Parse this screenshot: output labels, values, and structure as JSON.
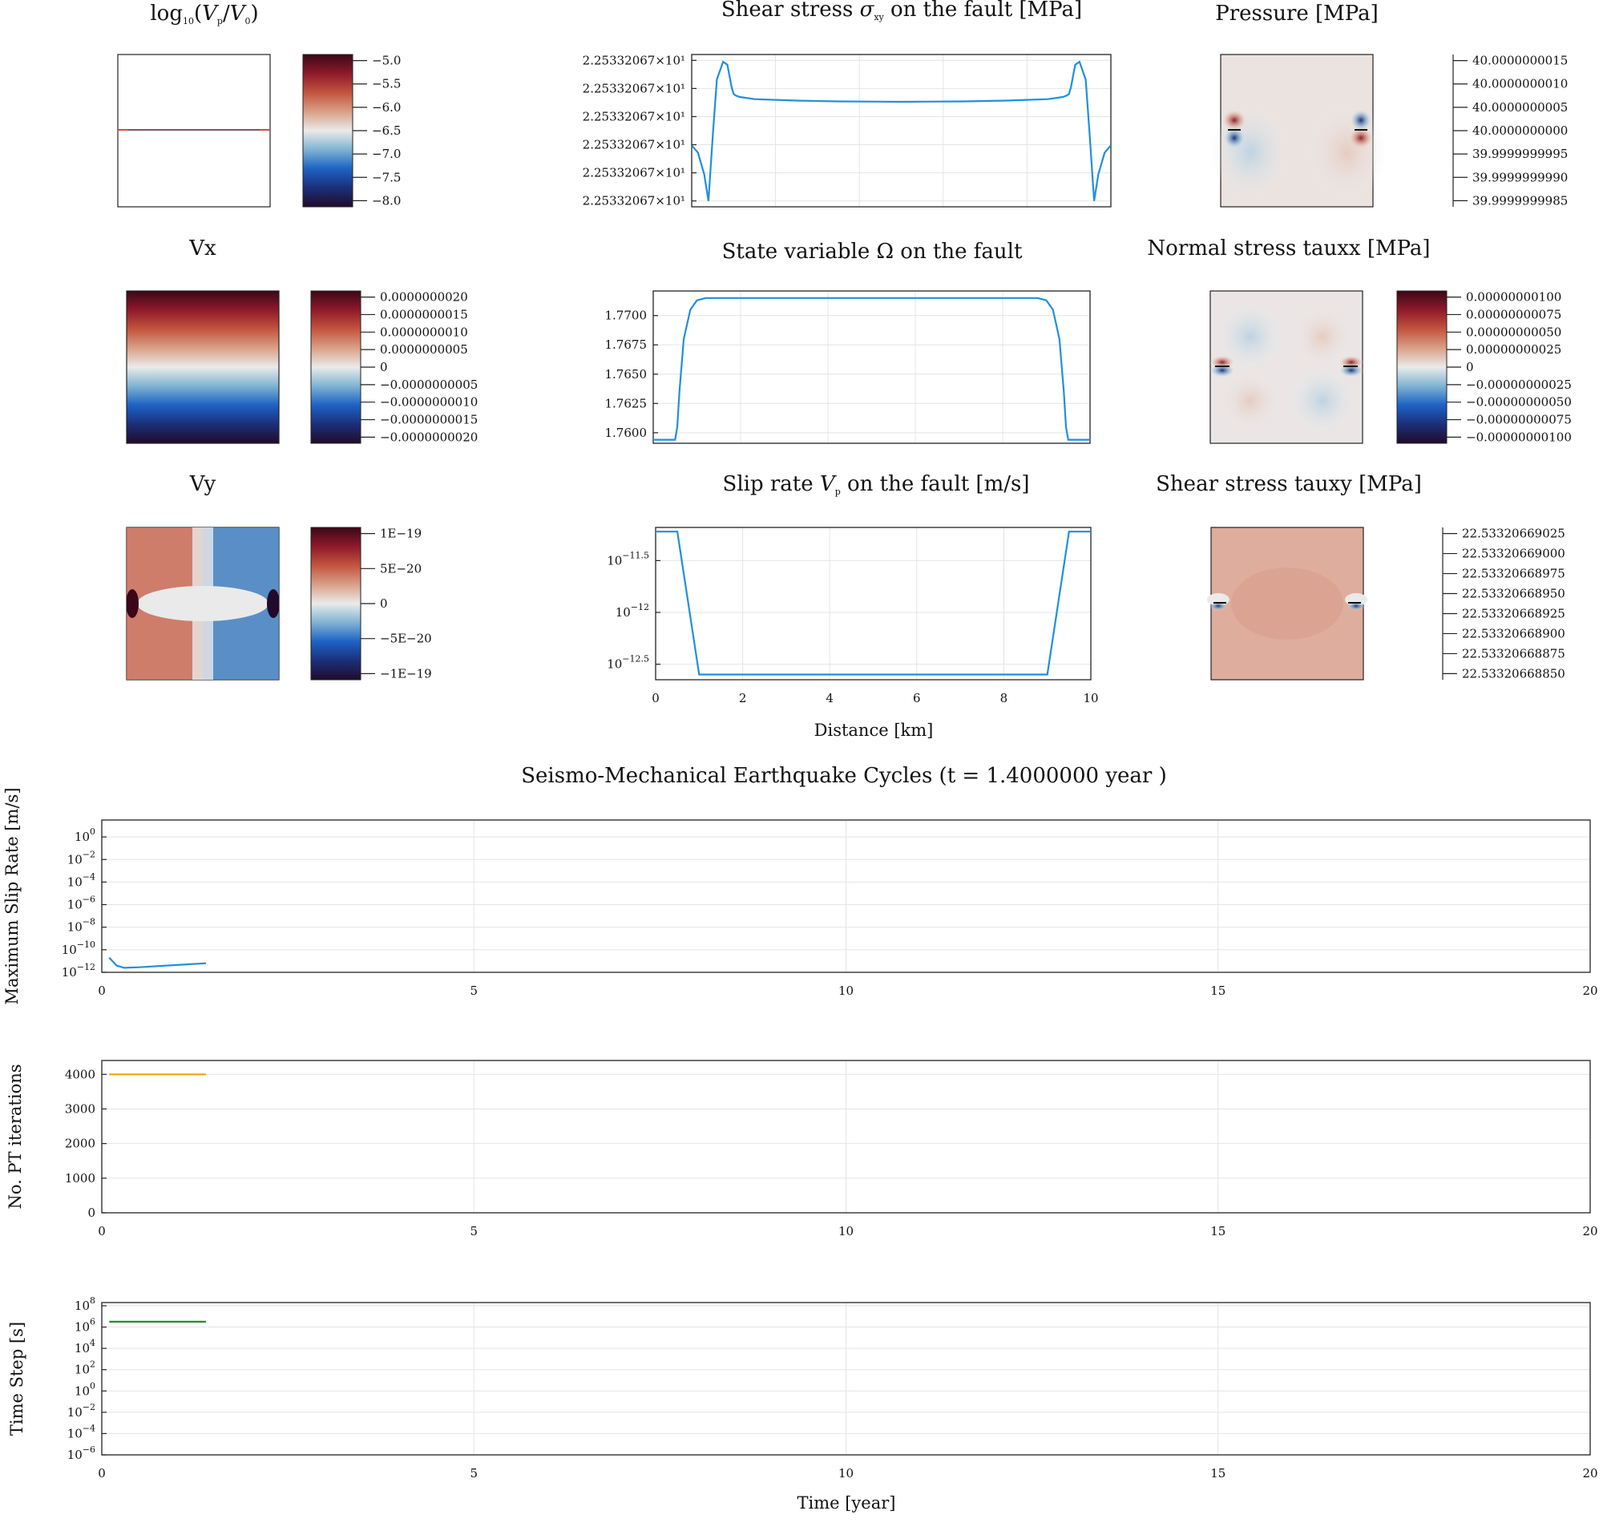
{
  "colors": {
    "series_blue": "#1f8fdf",
    "series_orange": "#f2a20e",
    "series_green": "#27892a",
    "frame": "#222222",
    "grid": "#e4e4e4",
    "colormap_diverging": [
      "#200b2b",
      "#1c2f79",
      "#1d62c4",
      "#7fb3d3",
      "#eaeaea",
      "#d9a087",
      "#c3543e",
      "#8e1a2a",
      "#3c0718"
    ]
  },
  "fields": {
    "log_vp": {
      "title": "log10(Vp/V0)",
      "colorbar_ticks": [
        "−5.0",
        "−5.5",
        "−6.0",
        "−6.5",
        "−7.0",
        "−7.5",
        "−8.0"
      ],
      "pattern": "fault-line"
    },
    "vx": {
      "title": "Vx",
      "colorbar_ticks": [
        "0.0000000020",
        "0.0000000015",
        "0.0000000010",
        "0.0000000005",
        "0",
        "−0.0000000005",
        "−0.0000000010",
        "−0.0000000015",
        "−0.0000000020"
      ],
      "pattern": "vertical-gradient"
    },
    "vy": {
      "title": "Vy",
      "colorbar_ticks": [
        "1E−19",
        "5E−20",
        "0",
        "−5E−20",
        "−1E−19"
      ],
      "pattern": "quadrupole"
    },
    "pressure": {
      "title": "Pressure [MPa]",
      "colorbar_ticks": [
        "40.0000000015",
        "40.0000000010",
        "40.0000000005",
        "40.0000000000",
        "39.9999999995",
        "39.9999999990",
        "39.9999999985"
      ],
      "pattern": "tip-dipoles"
    },
    "tauxx": {
      "title": "Normal stress tauxx [MPa]",
      "colorbar_ticks": [
        "0.00000000100",
        "0.00000000075",
        "0.00000000050",
        "0.00000000025",
        "0",
        "−0.00000000025",
        "−0.00000000050",
        "−0.00000000075",
        "−0.00000000100"
      ],
      "pattern": "tip-lobes"
    },
    "tauxy": {
      "title": "Shear stress tauxy [MPa]",
      "colorbar_ticks": [
        "22.53320669025",
        "22.53320669000",
        "22.53320668975",
        "22.53320668950",
        "22.53320668925",
        "22.53320668900",
        "22.53320668875",
        "22.53320668850"
      ],
      "pattern": "uniform-with-tips"
    }
  },
  "chart_data": [
    {
      "id": "shear_stress_fault",
      "type": "line",
      "title": "Shear stress σxy on the fault [MPa]",
      "xlabel": "",
      "ylabel": "",
      "ytick_labels": [
        "2.25332067×10¹",
        "2.25332067×10¹",
        "2.25332067×10¹",
        "2.25332067×10¹",
        "2.25332067×10¹",
        "2.25332067×10¹"
      ],
      "xlim": [
        0,
        10
      ],
      "grid": true,
      "y_relative_scale": "normalized 0-1 (tick labels identical)",
      "x": [
        0,
        0.15,
        0.3,
        0.4,
        0.5,
        0.6,
        0.75,
        0.85,
        0.95,
        1.0,
        1.05,
        1.15,
        1.5,
        2.5,
        3.5,
        4.5,
        5,
        5.5,
        6.5,
        7.5,
        8.5,
        8.85,
        8.95,
        9.0,
        9.05,
        9.15,
        9.25,
        9.4,
        9.5,
        9.6,
        9.7,
        9.85,
        10
      ],
      "y": [
        0.4,
        0.35,
        0.2,
        0.02,
        0.45,
        0.85,
        0.97,
        0.95,
        0.8,
        0.75,
        0.74,
        0.73,
        0.715,
        0.705,
        0.7,
        0.698,
        0.697,
        0.698,
        0.7,
        0.705,
        0.715,
        0.73,
        0.74,
        0.75,
        0.8,
        0.95,
        0.97,
        0.85,
        0.45,
        0.02,
        0.2,
        0.35,
        0.4
      ]
    },
    {
      "id": "state_variable_fault",
      "type": "line",
      "title": "State variable Ω on the fault",
      "xlabel": "",
      "ylabel": "",
      "yticks": [
        1.76,
        1.7625,
        1.765,
        1.7675,
        1.77
      ],
      "ytick_labels": [
        "1.7600",
        "1.7625",
        "1.7650",
        "1.7675",
        "1.7700"
      ],
      "xlim": [
        0,
        10
      ],
      "ylim": [
        1.7591,
        1.7721
      ],
      "grid": true,
      "x": [
        0,
        0.5,
        0.55,
        0.6,
        0.7,
        0.85,
        1.0,
        1.2,
        1.5,
        5,
        8.5,
        8.8,
        9.0,
        9.15,
        9.3,
        9.4,
        9.45,
        9.5,
        10
      ],
      "y": [
        1.7594,
        1.7594,
        1.7605,
        1.7635,
        1.768,
        1.7705,
        1.7713,
        1.7715,
        1.7715,
        1.7715,
        1.7715,
        1.7715,
        1.7713,
        1.7705,
        1.768,
        1.7635,
        1.7605,
        1.7594,
        1.7594
      ]
    },
    {
      "id": "slip_rate_fault",
      "type": "line",
      "title": "Slip rate Vp on the fault [m/s]",
      "xlabel": "Distance [km]",
      "ylabel": "",
      "xticks": [
        0,
        2,
        4,
        6,
        8,
        10
      ],
      "yscale": "log",
      "yticks_log10": [
        -11.5,
        -12.0,
        -12.5
      ],
      "ytick_labels": [
        "10−11.5",
        "10−12.0",
        "10−12.5"
      ],
      "xlim": [
        0,
        10
      ],
      "ylim_log10": [
        -12.65,
        -11.18
      ],
      "grid": true,
      "x": [
        0,
        0.5,
        1.0,
        9.0,
        9.5,
        10
      ],
      "y_log10": [
        -11.22,
        -11.22,
        -12.6,
        -12.6,
        -11.22,
        -11.22
      ]
    },
    {
      "id": "max_slip_rate",
      "type": "line",
      "title": "Seismo-Mechanical Earthquake Cycles (t = 1.4000000 year )",
      "xlabel": "",
      "ylabel": "Maximum Slip Rate [m/s]",
      "xticks": [
        0,
        5,
        10,
        15,
        20
      ],
      "yscale": "log",
      "yticks_log10": [
        0,
        -2,
        -4,
        -6,
        -8,
        -10,
        -12
      ],
      "xlim": [
        0,
        20
      ],
      "ylim_log10": [
        -12,
        1.5
      ],
      "grid": true,
      "x": [
        0.1,
        0.2,
        0.3,
        0.5,
        1.0,
        1.4
      ],
      "y_log10": [
        -10.7,
        -11.4,
        -11.6,
        -11.55,
        -11.35,
        -11.2
      ]
    },
    {
      "id": "pt_iterations",
      "type": "line",
      "title": "",
      "xlabel": "",
      "ylabel": "No. PT iterations",
      "xticks": [
        0,
        5,
        10,
        15,
        20
      ],
      "yticks": [
        0,
        1000,
        2000,
        3000,
        4000
      ],
      "xlim": [
        0,
        20
      ],
      "ylim": [
        0,
        4400
      ],
      "grid": true,
      "x": [
        0.1,
        1.4
      ],
      "y": [
        4000,
        4000
      ]
    },
    {
      "id": "time_step",
      "type": "line",
      "title": "",
      "xlabel": "Time [year]",
      "ylabel": "Time Step [s]",
      "xticks": [
        0,
        5,
        10,
        15,
        20
      ],
      "yscale": "log",
      "yticks_log10": [
        8,
        6,
        4,
        2,
        0,
        -2,
        -4,
        -6
      ],
      "xlim": [
        0,
        20
      ],
      "ylim_log10": [
        -6,
        8.3
      ],
      "grid": true,
      "x": [
        0.1,
        1.4
      ],
      "y_log10": [
        6.5,
        6.5
      ]
    }
  ]
}
